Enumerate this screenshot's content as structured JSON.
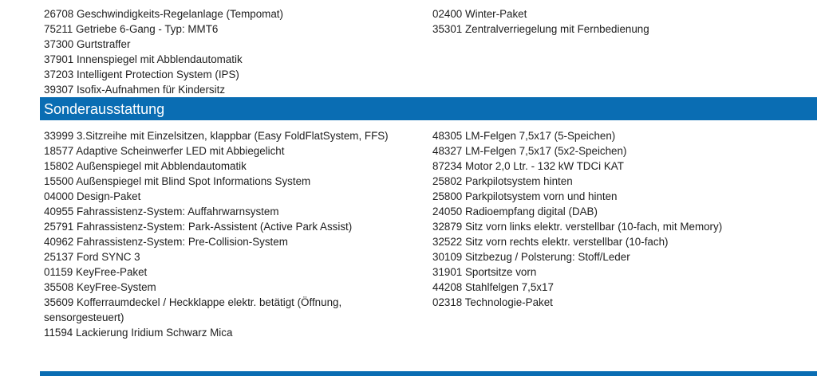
{
  "standard": {
    "left": [
      "26708 Geschwindigkeits-Regelanlage (Tempomat)",
      "75211 Getriebe 6-Gang - Typ: MMT6",
      "37300 Gurtstraffer",
      "37901 Innenspiegel mit Abblendautomatik",
      "37203 Intelligent Protection System (IPS)",
      "39307 Isofix-Aufnahmen für Kindersitz"
    ],
    "right": [
      "02400 Winter-Paket",
      "35301 Zentralverriegelung mit Fernbedienung"
    ]
  },
  "sonder": {
    "title": "Sonderausstattung",
    "left": [
      "33999 3.Sitzreihe mit Einzelsitzen, klappbar (Easy FoldFlatSystem, FFS)",
      "18577 Adaptive Scheinwerfer LED mit Abbiegelicht",
      "15802 Außenspiegel mit Abblendautomatik",
      "15500 Außenspiegel mit Blind Spot Informations System",
      "04000 Design-Paket",
      "40955 Fahrassistenz-System: Auffahrwarnsystem",
      "25791 Fahrassistenz-System: Park-Assistent (Active Park Assist)",
      "40962 Fahrassistenz-System: Pre-Collision-System",
      "25137 Ford SYNC 3",
      "01159 KeyFree-Paket",
      "35508 KeyFree-System",
      "35609 Kofferraumdeckel / Heckklappe elektr. betätigt (Öffnung, sensorgesteuert)",
      "11594 Lackierung Iridium Schwarz Mica"
    ],
    "right": [
      "48305 LM-Felgen 7,5x17 (5-Speichen)",
      "48327 LM-Felgen 7,5x17 (5x2-Speichen)",
      "87234 Motor 2,0 Ltr. - 132 kW TDCi KAT",
      "25802 Parkpilotsystem hinten",
      "25800 Parkpilotsystem vorn und hinten",
      "24050 Radioempfang digital (DAB)",
      "32879 Sitz vorn links elektr. verstellbar (10-fach, mit Memory)",
      "32522 Sitz vorn rechts elektr. verstellbar (10-fach)",
      "30109 Sitzbezug / Polsterung: Stoff/Leder",
      "31901 Sportsitze vorn",
      "44208 Stahlfelgen 7,5x17",
      "02318 Technologie-Paket"
    ]
  },
  "colors": {
    "section_bar": "#0a6db3",
    "text": "#1e1e1e"
  }
}
